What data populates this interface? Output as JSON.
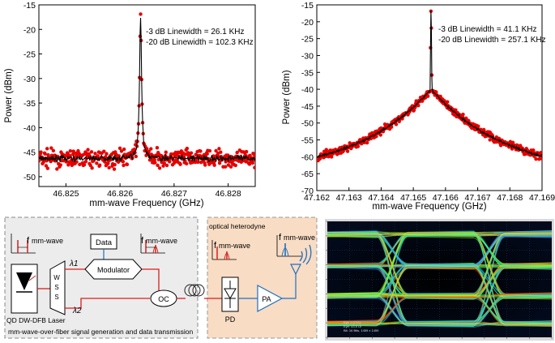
{
  "chart_data": [
    {
      "type": "scatter",
      "xlabel": "mm-wave Frequency (GHz)",
      "ylabel": "Power (dBm)",
      "xlim": [
        46.8245,
        46.8285
      ],
      "ylim": [
        -52,
        -15
      ],
      "xticks": [
        "46.825",
        "46.826",
        "46.827",
        "46.828"
      ],
      "yticks": [
        "-15",
        "-20",
        "-25",
        "-30",
        "-35",
        "-40",
        "-45",
        "-50"
      ],
      "annotations": [
        "-3 dB Linewidth = 26.1 KHz",
        "-20 dB Linewidth = 102.3 KHz"
      ],
      "peak": {
        "x": 46.82638,
        "y": -17.3
      },
      "floor_level": -46.3,
      "markers": "red dots",
      "fit_line": "black",
      "grid": false
    },
    {
      "type": "scatter",
      "xlabel": "mm-wave Frequency (GHz)",
      "ylabel": "Power (dBm)",
      "xlim": [
        47.162,
        47.169
      ],
      "ylim": [
        -70,
        -15
      ],
      "xticks": [
        "47.162",
        "47.163",
        "47.164",
        "47.165",
        "47.166",
        "47.167",
        "47.168",
        "47.169"
      ],
      "yticks": [
        "-15",
        "-20",
        "-25",
        "-30",
        "-35",
        "-40",
        "-45",
        "-50",
        "-55",
        "-60",
        "-65",
        "-70"
      ],
      "annotations": [
        "-3 dB Linewidth = 41.1 KHz",
        "-20 dB Linewidth = 257.1 KHz"
      ],
      "peak": {
        "x": 47.16555,
        "y": -16.2
      },
      "floor_level": -66,
      "markers": "red dots",
      "fit_line": "black",
      "grid": false
    }
  ],
  "setup": {
    "laser_label": "QD DW-DFB Laser",
    "wss_label": "W\nS\nS",
    "wss_letters": [
      "W",
      "S",
      "S"
    ],
    "data_label": "Data",
    "modulator_label": "Modulator",
    "oc_label": "OC",
    "pd_label": "PD",
    "pa_label": "PA",
    "lambda1": "λ1",
    "lambda2": "λ2",
    "f_label": "f",
    "f_sub": "mm-wave",
    "section1_caption": "mm-wave-over-fiber signal generation and data transmission",
    "section2_title": "optical heterodyne",
    "colors": {
      "left_box": "#ececec",
      "right_box": "#f8dcc4",
      "signal": "#d81e1e",
      "electrical": "#1f6fc0"
    }
  },
  "eye": {
    "info_lines": [
      "Eye 1 (TX1)",
      "Eye: 43.5 UI",
      "Bit: 16 Bits, 1459 x 1459"
    ]
  }
}
